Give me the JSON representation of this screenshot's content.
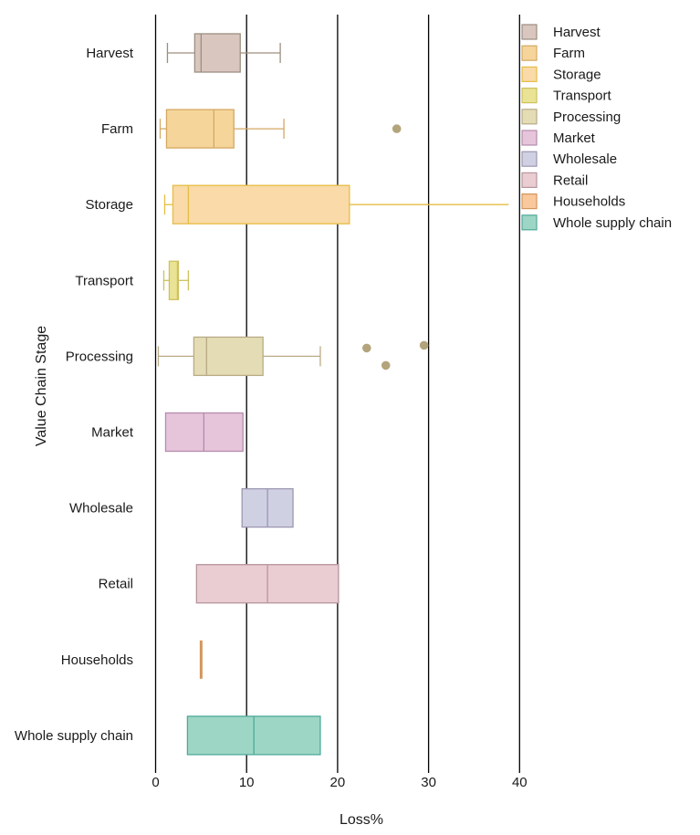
{
  "chart_data": {
    "type": "boxplot",
    "orientation": "horizontal",
    "title": "",
    "xlabel": "Loss%",
    "ylabel": "Value Chain Stage",
    "xlim": [
      0,
      40
    ],
    "xticks": [
      0,
      10,
      20,
      30,
      40
    ],
    "xtick_labels": [
      "0",
      "10",
      "20",
      "30",
      "40"
    ],
    "grid": "vertical major gridlines",
    "legend_position": "top-right",
    "categories": [
      "Harvest",
      "Farm",
      "Storage",
      "Transport",
      "Processing",
      "Market",
      "Wholesale",
      "Retail",
      "Households",
      "Whole supply chain"
    ],
    "series": [
      {
        "name": "Harvest",
        "fill": "#d9c7bf",
        "stroke": "#9c8e80",
        "whisker_low": 1.3,
        "q1": 4.3,
        "median": 5.0,
        "q3": 9.3,
        "whisker_high": 13.7,
        "outliers": []
      },
      {
        "name": "Farm",
        "fill": "#f5d59a",
        "stroke": "#d4a863",
        "whisker_low": 0.5,
        "q1": 1.2,
        "median": 6.4,
        "q3": 8.6,
        "whisker_high": 14.1,
        "outliers": [
          26.5
        ]
      },
      {
        "name": "Storage",
        "fill": "#f9daa8",
        "stroke": "#e6bd44",
        "whisker_low": 1.0,
        "q1": 1.9,
        "median": 3.6,
        "q3": 21.3,
        "whisker_high": 38.8,
        "outliers": []
      },
      {
        "name": "Transport",
        "fill": "#eae396",
        "stroke": "#cdc15c",
        "whisker_low": 0.9,
        "q1": 1.5,
        "median": 2.4,
        "q3": 2.5,
        "whisker_high": 3.6,
        "outliers": []
      },
      {
        "name": "Processing",
        "fill": "#e4dcb4",
        "stroke": "#b8ab86",
        "whisker_low": 0.3,
        "q1": 4.2,
        "median": 5.6,
        "q3": 11.8,
        "whisker_high": 18.1,
        "outliers": [
          23.2,
          25.3,
          29.5
        ]
      },
      {
        "name": "Market",
        "fill": "#e6c5db",
        "stroke": "#b48cac",
        "whisker_low": 1.1,
        "q1": 1.1,
        "median": 5.3,
        "q3": 9.6,
        "whisker_high": 9.6,
        "outliers": []
      },
      {
        "name": "Wholesale",
        "fill": "#d0d0e3",
        "stroke": "#9c97b2",
        "whisker_low": 9.5,
        "q1": 9.5,
        "median": 12.3,
        "q3": 15.1,
        "whisker_high": 15.1,
        "outliers": []
      },
      {
        "name": "Retail",
        "fill": "#eaccd3",
        "stroke": "#b8959c",
        "whisker_low": 4.5,
        "q1": 4.5,
        "median": 12.3,
        "q3": 20.1,
        "whisker_high": 20.1,
        "outliers": []
      },
      {
        "name": "Households",
        "fill": "#f9c89c",
        "stroke": "#d4965a",
        "whisker_low": 5.0,
        "q1": 5.0,
        "median": 5.0,
        "q3": 5.0,
        "whisker_high": 5.0,
        "outliers": []
      },
      {
        "name": "Whole supply chain",
        "fill": "#9ed6c5",
        "stroke": "#4fa99a",
        "whisker_low": 3.5,
        "q1": 3.5,
        "median": 10.8,
        "q3": 18.1,
        "whisker_high": 18.1,
        "outliers": []
      }
    ],
    "outlier_color": "#b3a47c",
    "legend": [
      "Harvest",
      "Farm",
      "Storage",
      "Transport",
      "Processing",
      "Market",
      "Wholesale",
      "Retail",
      "Households",
      "Whole supply chain"
    ]
  }
}
